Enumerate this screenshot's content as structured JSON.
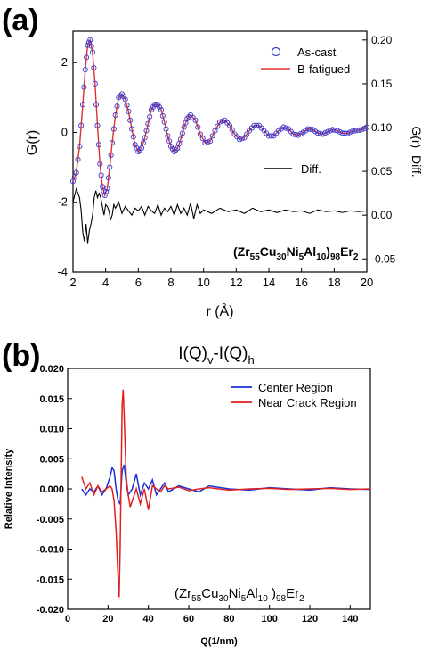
{
  "chart_data": [
    {
      "panel_label": "(a)",
      "type": "line",
      "xlabel": "r (Å)",
      "ylabel_left": "G(r)",
      "ylabel_right": "G(r)_Diff.",
      "xlim": [
        2,
        20
      ],
      "ylim_left": [
        -4,
        2.9
      ],
      "ylim_right": [
        -0.065,
        0.21
      ],
      "xticks": [
        "2",
        "4",
        "6",
        "8",
        "10",
        "12",
        "14",
        "16",
        "18",
        "20"
      ],
      "yticks_left": [
        "-4",
        "-2",
        "0",
        "2"
      ],
      "yticks_right": [
        "-0.05",
        "0.00",
        "0.05",
        "0.10",
        "0.15",
        "0.20"
      ],
      "grid": false,
      "legend_top": {
        "position": "top-right",
        "items": [
          {
            "name": "As-cast",
            "marker": "open-circle",
            "color": "#3a3ad0"
          },
          {
            "name": "B-fatigued",
            "marker": "line",
            "color": "#e03030"
          }
        ]
      },
      "legend_diff": {
        "name": "Diff.",
        "color": "#000000"
      },
      "composition": {
        "pre": "(Zr",
        "s1": "55",
        "m1": "Cu",
        "s2": "30",
        "m2": "Ni",
        "s3": "5",
        "m3": "Al",
        "s4": "10",
        "m4": ")",
        "s5": "98",
        "m5": "Er",
        "s6": "2"
      },
      "series": [
        {
          "name": "As-cast",
          "axis": "left",
          "x": [
            2.0,
            2.2,
            2.4,
            2.6,
            2.75,
            2.9,
            3.05,
            3.2,
            3.35,
            3.5,
            3.65,
            3.8,
            3.95,
            4.1,
            4.25,
            4.4,
            4.6,
            4.8,
            5.0,
            5.2,
            5.4,
            5.6,
            5.8,
            6.0,
            6.2,
            6.4,
            6.6,
            6.8,
            7.0,
            7.2,
            7.4,
            7.6,
            7.8,
            8.0,
            8.2,
            8.4,
            8.6,
            8.8,
            9.0,
            9.2,
            9.5,
            9.8,
            10.1,
            10.4,
            10.7,
            11.0,
            11.3,
            11.6,
            11.9,
            12.2,
            12.5,
            12.8,
            13.1,
            13.4,
            13.7,
            14.0,
            14.3,
            14.6,
            14.9,
            15.2,
            15.5,
            15.8,
            16.1,
            16.4,
            16.7,
            17.0,
            17.3,
            17.6,
            17.9,
            18.2,
            18.5,
            18.8,
            19.1,
            19.4,
            19.7,
            20.0
          ],
          "y": [
            -1.4,
            -1.15,
            -0.4,
            0.8,
            1.8,
            2.5,
            2.65,
            2.3,
            1.4,
            0.2,
            -0.9,
            -1.55,
            -1.8,
            -1.6,
            -1.0,
            -0.3,
            0.5,
            1.0,
            1.1,
            0.95,
            0.6,
            0.1,
            -0.35,
            -0.55,
            -0.45,
            -0.15,
            0.25,
            0.65,
            0.8,
            0.8,
            0.65,
            0.3,
            -0.1,
            -0.4,
            -0.55,
            -0.45,
            -0.2,
            0.15,
            0.4,
            0.5,
            0.35,
            -0.05,
            -0.3,
            -0.25,
            0.05,
            0.3,
            0.35,
            0.2,
            -0.05,
            -0.2,
            -0.15,
            0.05,
            0.2,
            0.2,
            0.05,
            -0.1,
            -0.1,
            0.05,
            0.15,
            0.1,
            -0.05,
            -0.08,
            0.0,
            0.1,
            0.08,
            -0.02,
            -0.05,
            0.02,
            0.08,
            0.05,
            -0.02,
            -0.03,
            0.03,
            0.06,
            0.08,
            0.15
          ]
        },
        {
          "name": "B-fatigued",
          "axis": "left",
          "same_as": "As-cast"
        },
        {
          "name": "Diff.",
          "axis": "right",
          "x": [
            2.0,
            2.2,
            2.4,
            2.5,
            2.6,
            2.7,
            2.8,
            2.9,
            3.0,
            3.1,
            3.2,
            3.3,
            3.4,
            3.5,
            3.6,
            3.7,
            3.8,
            3.9,
            4.0,
            4.1,
            4.2,
            4.3,
            4.4,
            4.5,
            4.6,
            4.8,
            5.0,
            5.2,
            5.4,
            5.6,
            5.8,
            6.0,
            6.2,
            6.4,
            6.6,
            6.8,
            7.0,
            7.2,
            7.4,
            7.6,
            7.8,
            8.0,
            8.2,
            8.4,
            8.6,
            8.8,
            9.0,
            9.2,
            9.4,
            9.6,
            9.8,
            10.0,
            10.5,
            11.0,
            11.5,
            12.0,
            12.5,
            13.0,
            13.5,
            14.0,
            14.5,
            15.0,
            15.5,
            16.0,
            16.5,
            17.0,
            17.5,
            18.0,
            18.5,
            19.0,
            19.5,
            20.0
          ],
          "y": [
            0.015,
            0.03,
            0.02,
            0.005,
            -0.02,
            -0.03,
            -0.01,
            -0.032,
            -0.018,
            -0.01,
            0.0,
            0.02,
            0.028,
            0.02,
            0.025,
            0.02,
            0.01,
            0.0,
            0.012,
            0.01,
            0.005,
            -0.005,
            0.0,
            0.012,
            0.008,
            0.015,
            0.002,
            0.01,
            0.005,
            0.0,
            0.008,
            0.005,
            0.01,
            0.0,
            0.01,
            0.005,
            0.002,
            0.012,
            0.0,
            0.008,
            0.004,
            0.01,
            0.0,
            0.012,
            0.002,
            0.008,
            0.0,
            0.014,
            -0.004,
            0.012,
            0.002,
            0.006,
            0.002,
            0.008,
            0.004,
            0.006,
            0.002,
            0.008,
            0.004,
            0.006,
            0.003,
            0.006,
            0.004,
            0.005,
            0.002,
            0.006,
            0.004,
            0.005,
            0.003,
            0.005,
            0.004,
            0.005
          ]
        }
      ]
    },
    {
      "panel_label": "(b)",
      "type": "line",
      "title_parts": {
        "a": "I(Q)",
        "sa": "v",
        "b": "-I(Q)",
        "sb": "h"
      },
      "xlabel": "Q(1/nm)",
      "ylabel": "Relative Intensity",
      "xlim": [
        0,
        150
      ],
      "ylim": [
        -0.02,
        0.02
      ],
      "xticks": [
        "0",
        "20",
        "40",
        "60",
        "80",
        "100",
        "120",
        "140"
      ],
      "yticks": [
        "-0.020",
        "-0.015",
        "-0.010",
        "-0.005",
        "0.000",
        "0.005",
        "0.010",
        "0.015",
        "0.020"
      ],
      "grid": false,
      "legend": {
        "position": "top-right"
      },
      "composition": {
        "pre": "(Zr",
        "s1": "55",
        "m1": "Cu",
        "s2": "30",
        "m2": "Ni",
        "s3": "5",
        "m3": "Al",
        "s4": "10",
        "m4": " )",
        "s5": "98",
        "m5": "Er",
        "s6": "2"
      },
      "series": [
        {
          "name": "Center Region",
          "color": "#1a2fd6",
          "x": [
            7,
            9,
            11,
            13,
            15,
            17,
            19,
            21,
            22,
            23,
            24,
            25,
            26,
            27,
            28,
            29,
            30,
            32,
            34,
            36,
            38,
            40,
            42,
            44,
            46,
            48,
            50,
            55,
            60,
            65,
            70,
            80,
            90,
            100,
            110,
            120,
            130,
            140,
            150
          ],
          "y": [
            0.0,
            -0.001,
            0.0,
            -0.0005,
            0.0005,
            -0.001,
            0.0,
            0.002,
            0.0035,
            0.003,
            0.0,
            -0.002,
            -0.0025,
            0.003,
            0.004,
            0.001,
            -0.001,
            0.0,
            0.0025,
            -0.001,
            0.001,
            0.0,
            0.0015,
            -0.001,
            0.0,
            0.001,
            -0.0005,
            0.0005,
            0.0,
            -0.0005,
            0.0005,
            0.0,
            -0.0002,
            0.0002,
            0.0,
            -0.0002,
            0.0002,
            0.0,
            -0.0001
          ]
        },
        {
          "name": "Near Crack Region",
          "color": "#e02020",
          "x": [
            7,
            9,
            11,
            13,
            15,
            17,
            19,
            21,
            22,
            23,
            24,
            25,
            25.5,
            26,
            27,
            27.5,
            28,
            29,
            30,
            31,
            32,
            34,
            36,
            38,
            40,
            42,
            44,
            46,
            48,
            50,
            55,
            60,
            65,
            70,
            80,
            90,
            100,
            110,
            120,
            130,
            140,
            150
          ],
          "y": [
            0.002,
            0.0,
            0.001,
            -0.001,
            0.0005,
            -0.0005,
            0.0,
            0.0005,
            0.0,
            -0.002,
            -0.007,
            -0.015,
            -0.018,
            -0.01,
            0.014,
            0.0165,
            0.012,
            0.002,
            -0.001,
            -0.003,
            -0.002,
            0.0,
            -0.0025,
            0.0,
            -0.0035,
            0.0005,
            0.0,
            -0.0005,
            0.0005,
            0.0,
            0.0003,
            -0.0003,
            0.0,
            0.0002,
            -0.0002,
            0.0,
            0.0001,
            -0.0001,
            0.0,
            0.0001,
            -0.0001,
            0.0
          ]
        }
      ]
    }
  ]
}
